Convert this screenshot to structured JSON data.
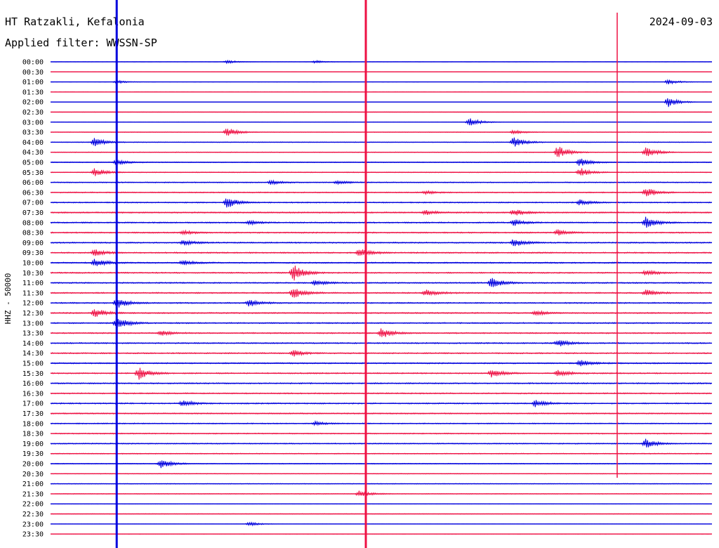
{
  "header": {
    "station": "HT Ratzakli, Kefalonia",
    "date": "2024-09-03",
    "filter": "Applied filter: WWSSN-SP"
  },
  "chart_data": {
    "type": "line",
    "ylabel": "HHZ - 50000",
    "rows": [
      "00:00",
      "00:30",
      "01:00",
      "01:30",
      "02:00",
      "02:30",
      "03:00",
      "03:30",
      "04:00",
      "04:30",
      "05:00",
      "05:30",
      "06:00",
      "06:30",
      "07:00",
      "07:30",
      "08:00",
      "08:30",
      "09:00",
      "09:30",
      "10:00",
      "10:30",
      "11:00",
      "11:30",
      "12:00",
      "12:30",
      "13:00",
      "13:30",
      "14:00",
      "14:30",
      "15:00",
      "15:30",
      "16:00",
      "16:30",
      "17:00",
      "17:30",
      "18:00",
      "18:30",
      "19:00",
      "19:30",
      "20:00",
      "20:30",
      "21:00",
      "21:30",
      "22:00",
      "22:30",
      "23:00",
      "23:30"
    ],
    "series_colors": [
      "#0000dd",
      "#ee1144"
    ],
    "row_noise_levels": [
      0.05,
      0.05,
      0.05,
      0.05,
      0.1,
      0.15,
      0.2,
      0.25,
      0.3,
      0.35,
      0.4,
      0.4,
      0.45,
      0.5,
      0.55,
      0.6,
      0.6,
      0.6,
      0.6,
      0.6,
      0.6,
      0.6,
      0.6,
      0.6,
      0.6,
      0.6,
      0.6,
      0.6,
      0.6,
      0.6,
      0.6,
      0.6,
      0.6,
      0.6,
      0.6,
      0.55,
      0.5,
      0.5,
      0.5,
      0.45,
      0.4,
      0.35,
      0.3,
      0.3,
      0.25,
      0.2,
      0.15,
      0.1
    ],
    "events": [
      {
        "row": 0,
        "minute": 8,
        "amp": 0.5
      },
      {
        "row": 0,
        "minute": 12,
        "amp": 0.4
      },
      {
        "row": 2,
        "minute": 3,
        "amp": 0.5
      },
      {
        "row": 2,
        "minute": 28,
        "amp": 0.8
      },
      {
        "row": 4,
        "minute": 28,
        "amp": 1.5
      },
      {
        "row": 6,
        "minute": 19,
        "amp": 1.2
      },
      {
        "row": 7,
        "minute": 8,
        "amp": 1.5
      },
      {
        "row": 7,
        "minute": 21,
        "amp": 0.6
      },
      {
        "row": 8,
        "minute": 2,
        "amp": 1.3
      },
      {
        "row": 8,
        "minute": 21,
        "amp": 1.5
      },
      {
        "row": 9,
        "minute": 23,
        "amp": 1.8
      },
      {
        "row": 9,
        "minute": 27,
        "amp": 1.5
      },
      {
        "row": 10,
        "minute": 3,
        "amp": 0.9
      },
      {
        "row": 10,
        "minute": 24,
        "amp": 1.2
      },
      {
        "row": 11,
        "minute": 2,
        "amp": 1.2
      },
      {
        "row": 11,
        "minute": 24,
        "amp": 1.3
      },
      {
        "row": 12,
        "minute": 10,
        "amp": 0.7
      },
      {
        "row": 12,
        "minute": 13,
        "amp": 0.6
      },
      {
        "row": 13,
        "minute": 17,
        "amp": 0.5
      },
      {
        "row": 13,
        "minute": 27,
        "amp": 1.4
      },
      {
        "row": 14,
        "minute": 8,
        "amp": 1.6
      },
      {
        "row": 14,
        "minute": 24,
        "amp": 0.8
      },
      {
        "row": 15,
        "minute": 17,
        "amp": 0.7
      },
      {
        "row": 15,
        "minute": 21,
        "amp": 1.0
      },
      {
        "row": 16,
        "minute": 9,
        "amp": 0.6
      },
      {
        "row": 16,
        "minute": 21,
        "amp": 0.9
      },
      {
        "row": 16,
        "minute": 27,
        "amp": 1.6
      },
      {
        "row": 17,
        "minute": 6,
        "amp": 0.6
      },
      {
        "row": 17,
        "minute": 23,
        "amp": 0.8
      },
      {
        "row": 18,
        "minute": 6,
        "amp": 0.8
      },
      {
        "row": 18,
        "minute": 21,
        "amp": 1.2
      },
      {
        "row": 19,
        "minute": 2,
        "amp": 1.0
      },
      {
        "row": 19,
        "minute": 14,
        "amp": 1.4
      },
      {
        "row": 20,
        "minute": 2,
        "amp": 1.3
      },
      {
        "row": 20,
        "minute": 6,
        "amp": 0.8
      },
      {
        "row": 21,
        "minute": 11,
        "amp": 2.5
      },
      {
        "row": 21,
        "minute": 27,
        "amp": 0.9
      },
      {
        "row": 22,
        "minute": 20,
        "amp": 1.6
      },
      {
        "row": 22,
        "minute": 12,
        "amp": 0.8
      },
      {
        "row": 23,
        "minute": 11,
        "amp": 1.6
      },
      {
        "row": 23,
        "minute": 17,
        "amp": 1.0
      },
      {
        "row": 23,
        "minute": 27,
        "amp": 1.0
      },
      {
        "row": 24,
        "minute": 3,
        "amp": 1.5
      },
      {
        "row": 24,
        "minute": 9,
        "amp": 1.0
      },
      {
        "row": 25,
        "minute": 2,
        "amp": 1.4
      },
      {
        "row": 25,
        "minute": 22,
        "amp": 0.8
      },
      {
        "row": 26,
        "minute": 3,
        "amp": 1.8
      },
      {
        "row": 27,
        "minute": 5,
        "amp": 0.8
      },
      {
        "row": 27,
        "minute": 15,
        "amp": 1.5
      },
      {
        "row": 28,
        "minute": 23,
        "amp": 1.1
      },
      {
        "row": 29,
        "minute": 11,
        "amp": 1.0
      },
      {
        "row": 30,
        "minute": 24,
        "amp": 1.0
      },
      {
        "row": 31,
        "minute": 4,
        "amp": 1.8
      },
      {
        "row": 31,
        "minute": 20,
        "amp": 1.3
      },
      {
        "row": 31,
        "minute": 23,
        "amp": 1.0
      },
      {
        "row": 34,
        "minute": 6,
        "amp": 1.0
      },
      {
        "row": 34,
        "minute": 22,
        "amp": 1.0
      },
      {
        "row": 36,
        "minute": 12,
        "amp": 0.5
      },
      {
        "row": 38,
        "minute": 27,
        "amp": 1.4
      },
      {
        "row": 40,
        "minute": 5,
        "amp": 1.3
      },
      {
        "row": 43,
        "minute": 14,
        "amp": 1.0
      },
      {
        "row": 46,
        "minute": 9,
        "amp": 0.6
      }
    ],
    "vertical_markers": [
      {
        "minute": 3.0,
        "color": "#0000dd"
      },
      {
        "minute": 14.3,
        "color": "#ee1144"
      },
      {
        "minute": 25.7,
        "color": "#ee1144"
      }
    ],
    "x_minutes_range": [
      0,
      30
    ]
  }
}
